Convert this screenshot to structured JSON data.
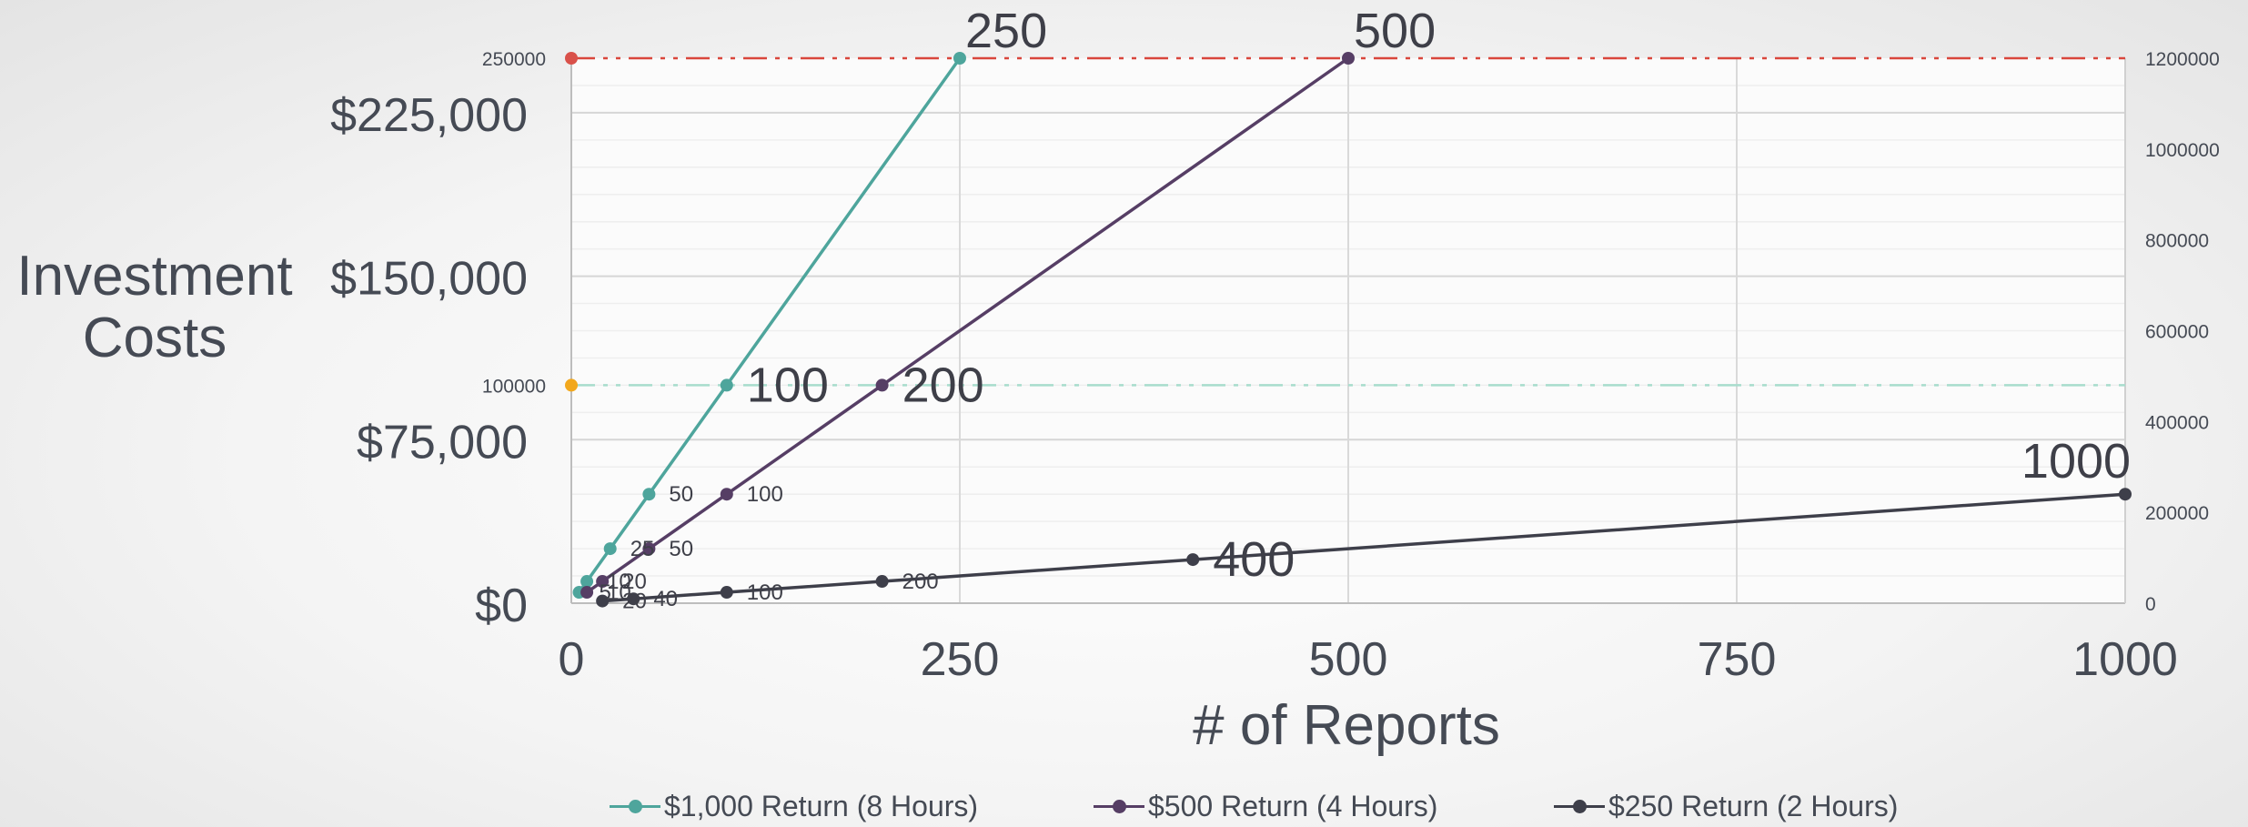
{
  "chart_data": {
    "type": "line",
    "xlabel": "# of Reports",
    "ylabel": "Investment Costs",
    "x_ticks": [
      "0",
      "250",
      "500",
      "750",
      "1000"
    ],
    "xlim": [
      0,
      1000
    ],
    "y_left_ticks": [
      "$0",
      "$75,000",
      "$150,000",
      "$225,000"
    ],
    "y_left_tick_values": [
      0,
      75000,
      150000,
      225000
    ],
    "ylim": [
      0,
      250000
    ],
    "y_right_ticks": [
      "0",
      "200000",
      "400000",
      "600000",
      "800000",
      "1000000",
      "1200000"
    ],
    "y_right_tick_values": [
      0,
      200000,
      400000,
      600000,
      800000,
      1000000,
      1200000
    ],
    "y_right_lim": [
      0,
      1200000
    ],
    "reference_lines": [
      {
        "label": "250000",
        "value": 250000,
        "color": "#d9463c",
        "marker_color": "#d9514a"
      },
      {
        "label": "100000",
        "value": 100000,
        "color": "#a8dccd",
        "marker_color": "#f2a81d"
      }
    ],
    "series": [
      {
        "name": "$1,000 Return (8 Hours)",
        "color": "#4ea59c",
        "x": [
          5,
          10,
          25,
          50,
          100,
          250
        ],
        "y": [
          5000,
          10000,
          25000,
          50000,
          100000,
          250000
        ],
        "labels": [
          "5",
          "10",
          "25",
          "50",
          "100",
          "250"
        ]
      },
      {
        "name": "$500 Return (4 Hours)",
        "color": "#563e65",
        "x": [
          10,
          20,
          50,
          100,
          200,
          500
        ],
        "y": [
          5000,
          10000,
          25000,
          50000,
          100000,
          250000
        ],
        "labels": [
          "10",
          "20",
          "50",
          "100",
          "200",
          "500"
        ]
      },
      {
        "name": "$250 Return (2 Hours)",
        "color": "#3e3f4a",
        "x": [
          20,
          40,
          100,
          200,
          400,
          1000
        ],
        "y": [
          1000,
          2000,
          5000,
          10000,
          20000,
          50000
        ],
        "labels": [
          "20",
          "40",
          "100",
          "200",
          "400",
          "1000"
        ]
      }
    ],
    "grid": true,
    "legend_position": "bottom"
  }
}
